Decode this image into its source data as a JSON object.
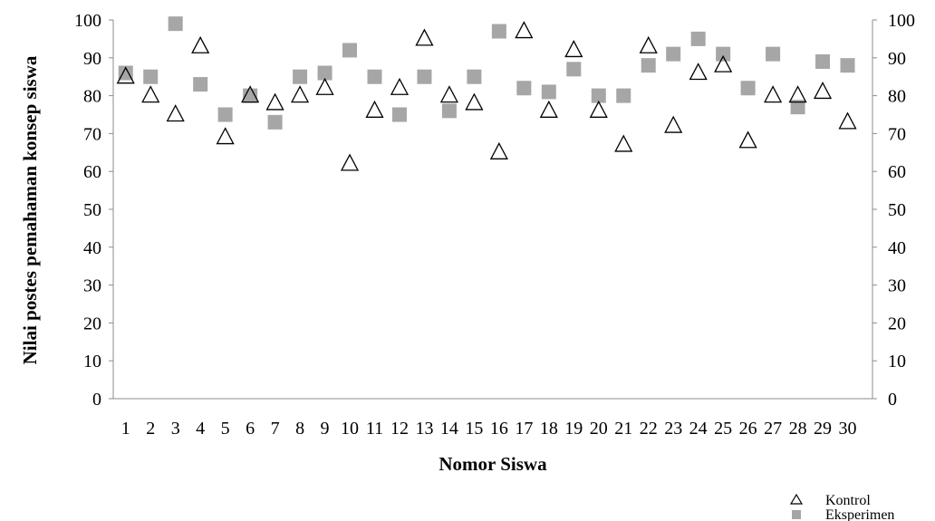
{
  "chart_data": {
    "type": "scatter",
    "xlabel": "Nomor Siswa",
    "ylabel": "Nilai postes pemahaman konsep siswa",
    "ylim": [
      0,
      100
    ],
    "y_ticks": [
      "0",
      "10",
      "20",
      "30",
      "40",
      "50",
      "60",
      "70",
      "80",
      "90",
      "100"
    ],
    "categories": [
      "1",
      "2",
      "3",
      "4",
      "5",
      "6",
      "7",
      "8",
      "9",
      "10",
      "11",
      "12",
      "13",
      "14",
      "15",
      "16",
      "17",
      "18",
      "19",
      "20",
      "21",
      "22",
      "23",
      "24",
      "25",
      "26",
      "27",
      "28",
      "29",
      "30"
    ],
    "grid": false,
    "secondary_y_axis": true,
    "legend_position": "bottom-right",
    "series": [
      {
        "name": "Kontrol",
        "marker": "triangle-open",
        "color": "#000000",
        "values": [
          85,
          80,
          75,
          93,
          69,
          80,
          78,
          80,
          82,
          62,
          76,
          82,
          95,
          80,
          78,
          65,
          97,
          76,
          92,
          76,
          67,
          93,
          72,
          86,
          88,
          68,
          80,
          80,
          81,
          73
        ]
      },
      {
        "name": "Eksperimen",
        "marker": "square",
        "color": "#a6a6a6",
        "values": [
          86,
          85,
          99,
          83,
          75,
          80,
          73,
          85,
          86,
          92,
          85,
          75,
          85,
          76,
          85,
          97,
          82,
          81,
          87,
          80,
          80,
          88,
          91,
          95,
          91,
          82,
          91,
          77,
          89,
          88
        ]
      }
    ]
  }
}
